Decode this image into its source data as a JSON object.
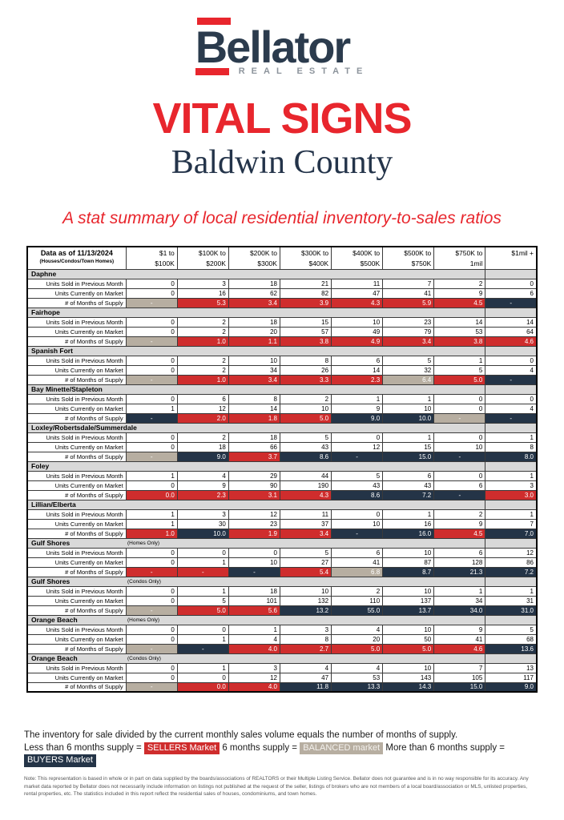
{
  "logo": {
    "name": "Bellator",
    "tagline": "REAL ESTATE"
  },
  "title": "VITAL SIGNS",
  "subtitle": "Baldwin County",
  "tagline": "A stat summary of local residential inventory-to-sales ratios",
  "colors": {
    "sellers_red": "#cf2d2d",
    "balanced_tan": "#b7aea1",
    "buyers_navy": "#243447",
    "accent_red": "#e8262d",
    "brand_navy": "#2b3b4d",
    "section_gray": "#d9d9d9"
  },
  "table": {
    "corner": {
      "line1": "Data as of 11/13/2024",
      "line2": "(Houses/Condos/Town Homes)"
    },
    "columns": [
      {
        "l1": "$1 to",
        "l2": "$100K"
      },
      {
        "l1": "$100K to",
        "l2": "$200K"
      },
      {
        "l1": "$200K to",
        "l2": "$300K"
      },
      {
        "l1": "$300K to",
        "l2": "$400K"
      },
      {
        "l1": "$400K to",
        "l2": "$500K"
      },
      {
        "l1": "$500K to",
        "l2": "$750K"
      },
      {
        "l1": "$750K to",
        "l2": "1mil"
      },
      {
        "l1": "$1mil +",
        "l2": ""
      }
    ],
    "row_labels": {
      "sold": "Units Sold in Previous Month",
      "market": "Units Currently on Market",
      "supply": "# of Months of Supply"
    },
    "sections": [
      {
        "name": "Daphne",
        "qualifier": "",
        "sold": [
          0,
          3,
          18,
          21,
          11,
          7,
          2,
          0
        ],
        "market": [
          0,
          16,
          62,
          82,
          47,
          41,
          9,
          6
        ],
        "supply": [
          {
            "v": "-",
            "c": "balanced"
          },
          {
            "v": "5.3",
            "c": "sellers"
          },
          {
            "v": "3.4",
            "c": "sellers"
          },
          {
            "v": "3.9",
            "c": "sellers"
          },
          {
            "v": "4.3",
            "c": "sellers"
          },
          {
            "v": "5.9",
            "c": "sellers"
          },
          {
            "v": "4.5",
            "c": "sellers"
          },
          {
            "v": "-",
            "c": "buyers"
          }
        ]
      },
      {
        "name": "Fairhope",
        "qualifier": "",
        "sold": [
          0,
          2,
          18,
          15,
          10,
          23,
          14,
          14
        ],
        "market": [
          0,
          2,
          20,
          57,
          49,
          79,
          53,
          64
        ],
        "supply": [
          {
            "v": "-",
            "c": "balanced"
          },
          {
            "v": "1.0",
            "c": "sellers"
          },
          {
            "v": "1.1",
            "c": "sellers"
          },
          {
            "v": "3.8",
            "c": "sellers"
          },
          {
            "v": "4.9",
            "c": "sellers"
          },
          {
            "v": "3.4",
            "c": "sellers"
          },
          {
            "v": "3.8",
            "c": "sellers"
          },
          {
            "v": "4.6",
            "c": "sellers"
          }
        ]
      },
      {
        "name": "Spanish Fort",
        "qualifier": "",
        "sold": [
          0,
          2,
          10,
          8,
          6,
          5,
          1,
          0
        ],
        "market": [
          0,
          2,
          34,
          26,
          14,
          32,
          5,
          4
        ],
        "supply": [
          {
            "v": "-",
            "c": "balanced"
          },
          {
            "v": "1.0",
            "c": "sellers"
          },
          {
            "v": "3.4",
            "c": "sellers"
          },
          {
            "v": "3.3",
            "c": "sellers"
          },
          {
            "v": "2.3",
            "c": "sellers"
          },
          {
            "v": "6.4",
            "c": "balanced"
          },
          {
            "v": "5.0",
            "c": "sellers"
          },
          {
            "v": "-",
            "c": "buyers"
          }
        ]
      },
      {
        "name": "Bay Minette/Stapleton",
        "qualifier": "",
        "sold": [
          0,
          6,
          8,
          2,
          1,
          1,
          0,
          0
        ],
        "market": [
          1,
          12,
          14,
          10,
          9,
          10,
          0,
          4
        ],
        "supply": [
          {
            "v": "-",
            "c": "buyers"
          },
          {
            "v": "2.0",
            "c": "sellers"
          },
          {
            "v": "1.8",
            "c": "sellers"
          },
          {
            "v": "5.0",
            "c": "sellers"
          },
          {
            "v": "9.0",
            "c": "buyers"
          },
          {
            "v": "10.0",
            "c": "buyers"
          },
          {
            "v": "-",
            "c": "balanced"
          },
          {
            "v": "-",
            "c": "buyers"
          }
        ]
      },
      {
        "name": "Loxley/Robertsdale/Summerdale",
        "qualifier": "",
        "sold": [
          0,
          2,
          18,
          5,
          0,
          1,
          0,
          1
        ],
        "market": [
          0,
          18,
          66,
          43,
          12,
          15,
          10,
          8
        ],
        "supply": [
          {
            "v": "-",
            "c": "balanced"
          },
          {
            "v": "9.0",
            "c": "buyers"
          },
          {
            "v": "3.7",
            "c": "sellers"
          },
          {
            "v": "8.6",
            "c": "buyers"
          },
          {
            "v": "-",
            "c": "buyers"
          },
          {
            "v": "15.0",
            "c": "buyers"
          },
          {
            "v": "-",
            "c": "buyers"
          },
          {
            "v": "8.0",
            "c": "buyers"
          }
        ]
      },
      {
        "name": "Foley",
        "qualifier": "",
        "sold": [
          1,
          4,
          29,
          44,
          5,
          6,
          0,
          1
        ],
        "market": [
          0,
          9,
          90,
          190,
          43,
          43,
          6,
          3
        ],
        "supply": [
          {
            "v": "0.0",
            "c": "sellers"
          },
          {
            "v": "2.3",
            "c": "sellers"
          },
          {
            "v": "3.1",
            "c": "sellers"
          },
          {
            "v": "4.3",
            "c": "sellers"
          },
          {
            "v": "8.6",
            "c": "buyers"
          },
          {
            "v": "7.2",
            "c": "buyers"
          },
          {
            "v": "-",
            "c": "buyers"
          },
          {
            "v": "3.0",
            "c": "sellers"
          }
        ]
      },
      {
        "name": "Lillian/Elberta",
        "qualifier": "",
        "sold": [
          1,
          3,
          12,
          11,
          0,
          1,
          2,
          1
        ],
        "market": [
          1,
          30,
          23,
          37,
          10,
          16,
          9,
          7
        ],
        "supply": [
          {
            "v": "1.0",
            "c": "sellers"
          },
          {
            "v": "10.0",
            "c": "buyers"
          },
          {
            "v": "1.9",
            "c": "sellers"
          },
          {
            "v": "3.4",
            "c": "sellers"
          },
          {
            "v": "-",
            "c": "buyers"
          },
          {
            "v": "16.0",
            "c": "buyers"
          },
          {
            "v": "4.5",
            "c": "sellers"
          },
          {
            "v": "7.0",
            "c": "buyers"
          }
        ]
      },
      {
        "name": "Gulf Shores",
        "qualifier": "(Homes Only)",
        "sold": [
          0,
          0,
          0,
          5,
          6,
          10,
          6,
          12
        ],
        "market": [
          0,
          1,
          10,
          27,
          41,
          87,
          128,
          86
        ],
        "supply": [
          {
            "v": "-",
            "c": "sellers"
          },
          {
            "v": "-",
            "c": "sellers"
          },
          {
            "v": "-",
            "c": "buyers"
          },
          {
            "v": "5.4",
            "c": "sellers"
          },
          {
            "v": "6.8",
            "c": "balanced"
          },
          {
            "v": "8.7",
            "c": "buyers"
          },
          {
            "v": "21.3",
            "c": "buyers"
          },
          {
            "v": "7.2",
            "c": "buyers"
          }
        ]
      },
      {
        "name": "Gulf Shores",
        "qualifier": "(Condos Only)",
        "sold": [
          0,
          1,
          18,
          10,
          2,
          10,
          1,
          1
        ],
        "market": [
          0,
          5,
          101,
          132,
          110,
          137,
          34,
          31
        ],
        "supply": [
          {
            "v": "-",
            "c": "balanced"
          },
          {
            "v": "5.0",
            "c": "sellers"
          },
          {
            "v": "5.6",
            "c": "sellers"
          },
          {
            "v": "13.2",
            "c": "buyers"
          },
          {
            "v": "55.0",
            "c": "buyers"
          },
          {
            "v": "13.7",
            "c": "buyers"
          },
          {
            "v": "34.0",
            "c": "buyers"
          },
          {
            "v": "31.0",
            "c": "buyers"
          }
        ]
      },
      {
        "name": "Orange Beach",
        "qualifier": "(Homes Only)",
        "sold": [
          0,
          0,
          1,
          3,
          4,
          10,
          9,
          5
        ],
        "market": [
          0,
          1,
          4,
          8,
          20,
          50,
          41,
          68
        ],
        "supply": [
          {
            "v": "-",
            "c": "balanced"
          },
          {
            "v": "-",
            "c": "buyers"
          },
          {
            "v": "4.0",
            "c": "sellers"
          },
          {
            "v": "2.7",
            "c": "sellers"
          },
          {
            "v": "5.0",
            "c": "sellers"
          },
          {
            "v": "5.0",
            "c": "sellers"
          },
          {
            "v": "4.6",
            "c": "sellers"
          },
          {
            "v": "13.6",
            "c": "buyers"
          }
        ]
      },
      {
        "name": "Orange Beach",
        "qualifier": "(Condos Only)",
        "sold": [
          0,
          1,
          3,
          4,
          4,
          10,
          7,
          13
        ],
        "market": [
          0,
          0,
          12,
          47,
          53,
          143,
          105,
          117
        ],
        "supply": [
          {
            "v": "-",
            "c": "balanced"
          },
          {
            "v": "0.0",
            "c": "sellers"
          },
          {
            "v": "4.0",
            "c": "sellers"
          },
          {
            "v": "11.8",
            "c": "buyers"
          },
          {
            "v": "13.3",
            "c": "buyers"
          },
          {
            "v": "14.3",
            "c": "buyers"
          },
          {
            "v": "15.0",
            "c": "buyers"
          },
          {
            "v": "9.0",
            "c": "buyers"
          }
        ]
      }
    ]
  },
  "legend": {
    "line1": "The inventory for sale divided by the current monthly sales volume equals the number of months of supply.",
    "sellers_prefix": "Less than 6 months supply =",
    "sellers_label": "SELLERS Market",
    "balanced_prefix": "6 months supply =",
    "balanced_label": "BALANCED market",
    "buyers_prefix": "More than 6 months supply =",
    "buyers_label": "BUYERS Market"
  },
  "note": "Note: This representation is based in whole or in part on data supplied by the boards/associations of REALTORS or their Multiple Listing Service. Bellator does not guarantee and is in no way responsible for its accuracy. Any market data reported by Bellator does not necessarily include information on listings not published at the request of the seller, listings of brokers who are not members of a local board/association or MLS, unlisted properties, rental properties, etc. The statistics included in this report reflect the residential sales of houses, condominiums, and town homes."
}
